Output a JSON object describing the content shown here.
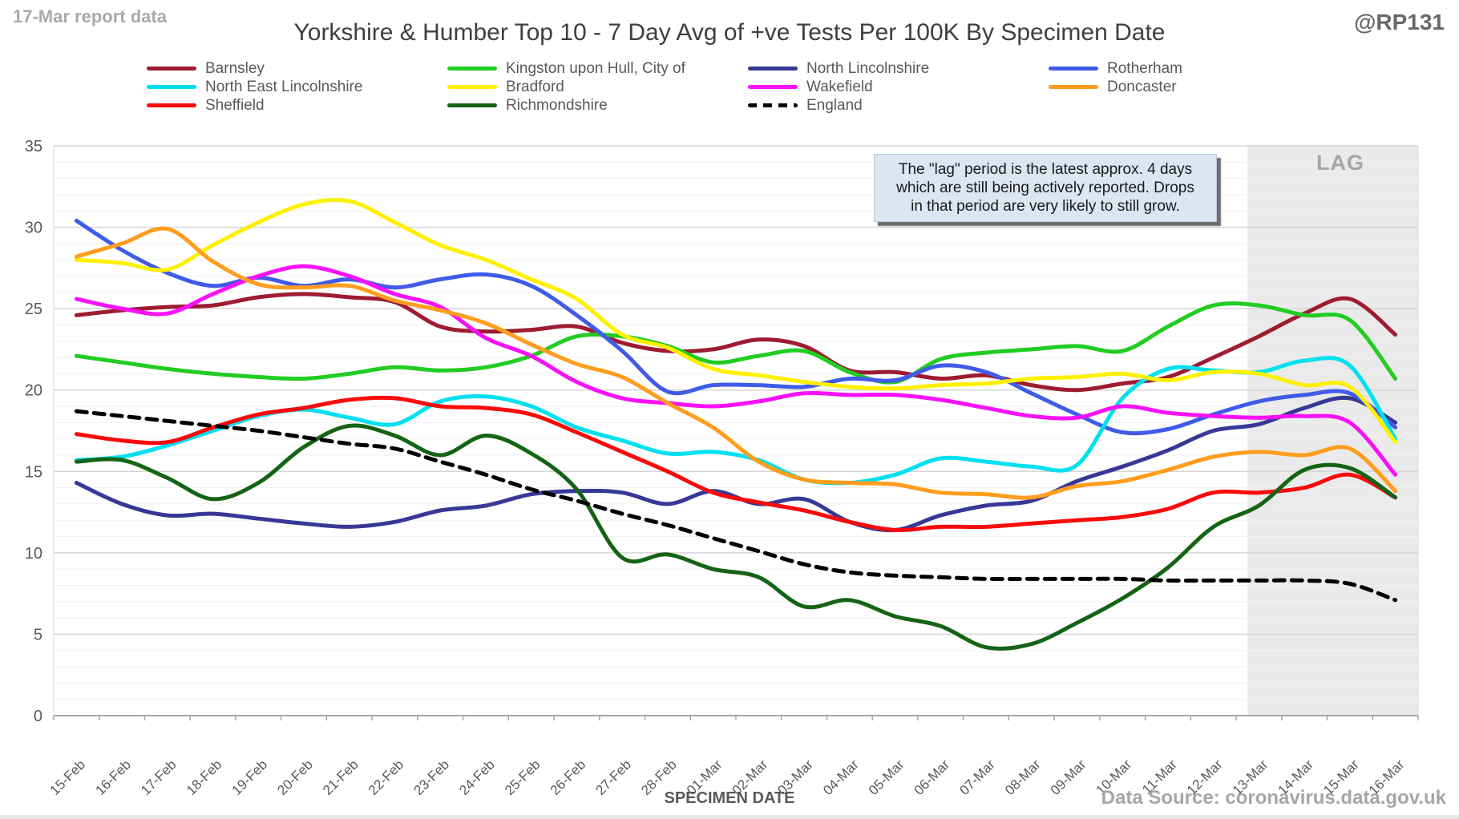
{
  "header": {
    "report_note": "17-Mar report data",
    "handle": "@RP131",
    "title": "Yorkshire & Humber Top 10 - 7 Day Avg of +ve Tests Per 100K By Specimen Date"
  },
  "annotation": {
    "line1": "The \"lag\" period is the latest approx. 4 days",
    "line2": "which are still being actively reported. Drops",
    "line3": "in that period are very likely to still grow."
  },
  "lag_label": "LAG",
  "footer": {
    "xlabel": "SPECIMEN DATE",
    "source": "Data Source: coronavirus.data.gov.uk"
  },
  "colors": {
    "grid_minor": "#F1F1F1",
    "grid_major": "#D5D5D5",
    "axis": "#A6A6A6",
    "plot_edge": "#D9D9D9",
    "lag_fill": "#EAEAEA",
    "label_gray": "#595959"
  },
  "chart_data": {
    "type": "line",
    "title": "Yorkshire & Humber Top 10 - 7 Day Avg of +ve Tests Per 100K By Specimen Date",
    "xlabel": "SPECIMEN DATE",
    "ylabel": "",
    "ylim": [
      0,
      35
    ],
    "ytick_step": 5,
    "minor_grid_step": 1,
    "legend_position": "top",
    "lag_region_start_index": 25.75,
    "x": [
      "15-Feb",
      "16-Feb",
      "17-Feb",
      "18-Feb",
      "19-Feb",
      "20-Feb",
      "21-Feb",
      "22-Feb",
      "23-Feb",
      "24-Feb",
      "25-Feb",
      "26-Feb",
      "27-Feb",
      "28-Feb",
      "01-Mar",
      "02-Mar",
      "03-Mar",
      "04-Mar",
      "05-Mar",
      "06-Mar",
      "07-Mar",
      "08-Mar",
      "09-Mar",
      "10-Mar",
      "11-Mar",
      "12-Mar",
      "13-Mar",
      "14-Mar",
      "15-Mar",
      "16-Mar"
    ],
    "series": [
      {
        "name": "Barnsley",
        "color": "#9E1B32",
        "dashed": false,
        "values": [
          24.6,
          24.9,
          25.1,
          25.2,
          25.7,
          25.9,
          25.7,
          25.4,
          23.9,
          23.6,
          23.7,
          23.9,
          22.9,
          22.4,
          22.5,
          23.1,
          22.7,
          21.2,
          21.1,
          20.7,
          20.9,
          20.3,
          20.0,
          20.4,
          20.8,
          22.0,
          23.3,
          24.7,
          25.6,
          23.4
        ]
      },
      {
        "name": "Kingston upon Hull, City of",
        "color": "#22CC22",
        "dashed": false,
        "values": [
          22.1,
          21.7,
          21.3,
          21.0,
          20.8,
          20.7,
          21.0,
          21.4,
          21.2,
          21.4,
          22.1,
          23.3,
          23.3,
          22.7,
          21.7,
          22.1,
          22.4,
          21.1,
          20.5,
          21.9,
          22.3,
          22.5,
          22.7,
          22.4,
          23.9,
          25.2,
          25.2,
          24.6,
          24.3,
          20.7
        ]
      },
      {
        "name": "North Lincolnshire",
        "color": "#373896",
        "dashed": false,
        "values": [
          14.3,
          13.0,
          12.3,
          12.4,
          12.1,
          11.8,
          11.6,
          11.9,
          12.6,
          12.9,
          13.6,
          13.8,
          13.7,
          13.0,
          13.8,
          13.0,
          13.3,
          11.9,
          11.4,
          12.3,
          12.9,
          13.2,
          14.4,
          15.3,
          16.3,
          17.5,
          17.9,
          18.9,
          19.5,
          18.0
        ]
      },
      {
        "name": "Rotherham",
        "color": "#3F5BE8",
        "dashed": false,
        "values": [
          30.4,
          28.6,
          27.2,
          26.4,
          26.9,
          26.4,
          26.8,
          26.3,
          26.8,
          27.1,
          26.4,
          24.6,
          22.4,
          19.9,
          20.3,
          20.3,
          20.2,
          20.7,
          20.6,
          21.5,
          21.1,
          19.8,
          18.5,
          17.4,
          17.6,
          18.5,
          19.3,
          19.7,
          19.8,
          17.7
        ]
      },
      {
        "name": "North East Lincolnshire",
        "color": "#00E0EE",
        "dashed": false,
        "values": [
          15.7,
          15.9,
          16.6,
          17.5,
          18.4,
          18.8,
          18.3,
          17.9,
          19.3,
          19.6,
          19.0,
          17.7,
          16.9,
          16.1,
          16.2,
          15.7,
          14.5,
          14.3,
          14.8,
          15.8,
          15.6,
          15.3,
          15.4,
          19.5,
          21.3,
          21.2,
          21.1,
          21.8,
          21.5,
          17.0
        ]
      },
      {
        "name": "Bradford",
        "color": "#FFF000",
        "dashed": false,
        "values": [
          28.0,
          27.8,
          27.4,
          28.9,
          30.3,
          31.4,
          31.6,
          30.3,
          28.9,
          28.0,
          26.8,
          25.6,
          23.4,
          22.6,
          21.3,
          20.9,
          20.5,
          20.2,
          20.1,
          20.3,
          20.4,
          20.7,
          20.8,
          21.0,
          20.6,
          21.1,
          21.0,
          20.3,
          20.2,
          16.8
        ]
      },
      {
        "name": "Wakefield",
        "color": "#F711F7",
        "dashed": false,
        "values": [
          25.6,
          25.0,
          24.7,
          25.9,
          27.0,
          27.6,
          27.0,
          25.9,
          25.1,
          23.2,
          22.1,
          20.5,
          19.5,
          19.2,
          19.0,
          19.3,
          19.8,
          19.7,
          19.7,
          19.4,
          18.9,
          18.4,
          18.3,
          19.0,
          18.6,
          18.4,
          18.3,
          18.4,
          18.0,
          14.8
        ]
      },
      {
        "name": "Doncaster",
        "color": "#FF9D1E",
        "dashed": false,
        "values": [
          28.2,
          29.0,
          29.9,
          27.9,
          26.5,
          26.3,
          26.4,
          25.5,
          24.9,
          24.1,
          22.8,
          21.6,
          20.8,
          19.2,
          17.7,
          15.6,
          14.5,
          14.3,
          14.2,
          13.7,
          13.6,
          13.4,
          14.1,
          14.4,
          15.1,
          15.9,
          16.2,
          16.0,
          16.4,
          13.8
        ]
      },
      {
        "name": "Sheffield",
        "color": "#F90B0B",
        "dashed": false,
        "values": [
          17.3,
          16.9,
          16.8,
          17.7,
          18.5,
          18.9,
          19.4,
          19.5,
          19.0,
          18.9,
          18.5,
          17.4,
          16.2,
          15.0,
          13.7,
          13.1,
          12.6,
          11.9,
          11.4,
          11.6,
          11.6,
          11.8,
          12.0,
          12.2,
          12.7,
          13.7,
          13.7,
          14.0,
          14.8,
          13.4
        ]
      },
      {
        "name": "Richmondshire",
        "color": "#156315",
        "dashed": false,
        "values": [
          15.6,
          15.7,
          14.6,
          13.3,
          14.3,
          16.5,
          17.8,
          17.2,
          16.0,
          17.2,
          16.1,
          13.9,
          9.7,
          9.9,
          9.0,
          8.5,
          6.7,
          7.1,
          6.1,
          5.5,
          4.2,
          4.4,
          5.7,
          7.2,
          9.1,
          11.6,
          12.9,
          15.1,
          15.2,
          13.4
        ]
      },
      {
        "name": "England",
        "color": "#000000",
        "dashed": true,
        "values": [
          18.7,
          18.4,
          18.1,
          17.8,
          17.5,
          17.1,
          16.7,
          16.4,
          15.6,
          14.8,
          13.9,
          13.2,
          12.4,
          11.7,
          10.9,
          10.1,
          9.3,
          8.8,
          8.6,
          8.5,
          8.4,
          8.4,
          8.4,
          8.4,
          8.3,
          8.3,
          8.3,
          8.3,
          8.1,
          7.1
        ]
      }
    ]
  }
}
